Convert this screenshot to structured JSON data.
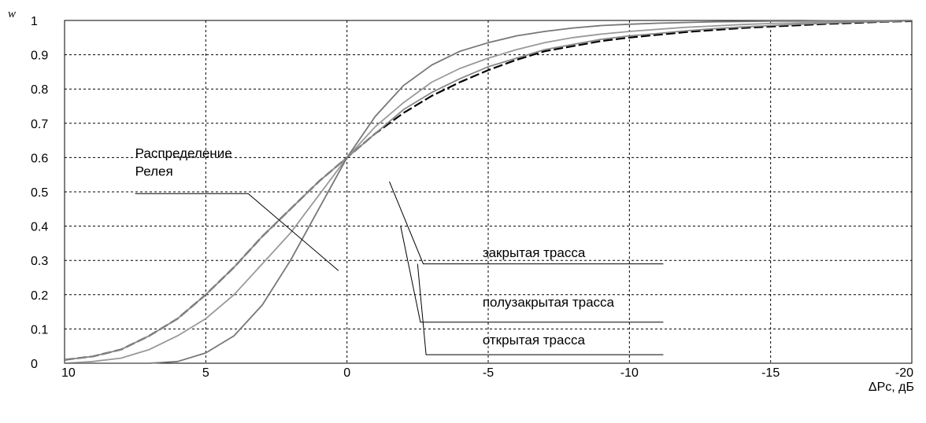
{
  "chart_data": {
    "type": "line",
    "title": "",
    "xlabel": "ΔPc, дБ",
    "ylabel": "w",
    "xlim": [
      10,
      -20
    ],
    "ylim": [
      0,
      1
    ],
    "x_axis_reversed": true,
    "grid": true,
    "x_ticks": [
      10,
      5,
      0,
      -5,
      -10,
      -15,
      -20
    ],
    "x_tick_labels": [
      "10",
      "5",
      "0",
      "-5",
      "-10",
      "-15",
      "-20"
    ],
    "y_ticks": [
      0,
      0.1,
      0.2,
      0.3,
      0.4,
      0.5,
      0.6,
      0.7,
      0.8,
      0.9,
      1
    ],
    "y_tick_labels": [
      "0",
      "0.1",
      "0.2",
      "0.3",
      "0.4",
      "0.5",
      "0.6",
      "0.7",
      "0.8",
      "0.9",
      "1"
    ],
    "series": [
      {
        "name": "Распределение Релея",
        "color": "#000000",
        "dashed": true,
        "x": [
          10,
          9,
          8,
          7,
          6,
          5,
          4,
          3,
          2,
          1,
          0,
          -1,
          -2,
          -3,
          -4,
          -5,
          -6,
          -7,
          -8,
          -9,
          -10,
          -11,
          -12,
          -13,
          -14,
          -15,
          -16,
          -17,
          -18,
          -19,
          -20
        ],
        "y": [
          0.01,
          0.02,
          0.04,
          0.08,
          0.13,
          0.2,
          0.28,
          0.37,
          0.45,
          0.53,
          0.6,
          0.67,
          0.73,
          0.78,
          0.82,
          0.855,
          0.885,
          0.91,
          0.925,
          0.94,
          0.95,
          0.958,
          0.966,
          0.972,
          0.978,
          0.982,
          0.986,
          0.99,
          0.993,
          0.996,
          0.998
        ]
      },
      {
        "name": "закрытая трасса",
        "color": "#888888",
        "dashed": false,
        "x": [
          10,
          9,
          8,
          7,
          6,
          5,
          4,
          3,
          2,
          1,
          0,
          -1,
          -2,
          -3,
          -4,
          -5,
          -6,
          -7,
          -8,
          -9,
          -10,
          -11,
          -12,
          -13,
          -14,
          -15,
          -16,
          -17,
          -18,
          -19,
          -20
        ],
        "y": [
          0.01,
          0.02,
          0.04,
          0.08,
          0.13,
          0.2,
          0.28,
          0.37,
          0.45,
          0.53,
          0.6,
          0.67,
          0.74,
          0.79,
          0.83,
          0.865,
          0.89,
          0.915,
          0.93,
          0.945,
          0.955,
          0.962,
          0.97,
          0.976,
          0.981,
          0.985,
          0.989,
          0.992,
          0.995,
          0.997,
          0.999
        ]
      },
      {
        "name": "полузакрытая трасса",
        "color": "#999999",
        "dashed": false,
        "x": [
          10,
          9,
          8,
          7,
          6,
          5,
          4,
          3,
          2,
          1,
          0,
          -1,
          -2,
          -3,
          -4,
          -5,
          -6,
          -7,
          -8,
          -9,
          -10,
          -11,
          -12,
          -13,
          -14,
          -15,
          -16,
          -17,
          -18,
          -19,
          -20
        ],
        "y": [
          0,
          0.005,
          0.015,
          0.04,
          0.08,
          0.13,
          0.2,
          0.29,
          0.38,
          0.49,
          0.6,
          0.69,
          0.76,
          0.82,
          0.86,
          0.89,
          0.915,
          0.935,
          0.95,
          0.96,
          0.968,
          0.974,
          0.98,
          0.984,
          0.988,
          0.991,
          0.993,
          0.995,
          0.997,
          0.998,
          0.999
        ]
      },
      {
        "name": "открытая трасса",
        "color": "#777777",
        "dashed": false,
        "x": [
          10,
          9,
          8,
          7,
          6,
          5,
          4,
          3,
          2,
          1,
          0,
          -1,
          -2,
          -3,
          -4,
          -5,
          -6,
          -7,
          -8,
          -9,
          -10,
          -11,
          -12,
          -13,
          -14,
          -15,
          -16,
          -17,
          -18,
          -19,
          -20
        ],
        "y": [
          0,
          0,
          0,
          0,
          0.005,
          0.03,
          0.08,
          0.17,
          0.3,
          0.45,
          0.6,
          0.72,
          0.81,
          0.87,
          0.91,
          0.935,
          0.955,
          0.968,
          0.978,
          0.985,
          0.989,
          0.992,
          0.994,
          0.996,
          0.997,
          0.998,
          0.998,
          0.999,
          0.999,
          0.999,
          1
        ]
      }
    ],
    "annotations": [
      {
        "text_lines": [
          "Распределение",
          "Релея"
        ],
        "series": "Распределение Релея",
        "text_x": 7.5,
        "text_y": 0.6,
        "leader": [
          [
            7.5,
            0.495
          ],
          [
            3.5,
            0.495
          ],
          [
            0.3,
            0.27
          ]
        ]
      },
      {
        "text_lines": [
          "закрытая трасса"
        ],
        "series": "закрытая трасса",
        "text_x": -4.8,
        "text_y": 0.31,
        "leader": [
          [
            -2.7,
            0.29
          ],
          [
            -11.2,
            0.29
          ],
          [
            -2.7,
            0.29
          ],
          [
            -1.5,
            0.53
          ]
        ]
      },
      {
        "text_lines": [
          "полузакрытая трасса"
        ],
        "series": "полузакрытая трасса",
        "text_x": -4.8,
        "text_y": 0.165,
        "leader": [
          [
            -2.6,
            0.12
          ],
          [
            -11.2,
            0.12
          ],
          [
            -2.6,
            0.12
          ],
          [
            -1.9,
            0.4
          ]
        ]
      },
      {
        "text_lines": [
          "открытая трасса"
        ],
        "series": "открытая трасса",
        "text_x": -4.8,
        "text_y": 0.055,
        "leader": [
          [
            -2.8,
            0.025
          ],
          [
            -11.2,
            0.025
          ],
          [
            -2.8,
            0.025
          ],
          [
            -2.5,
            0.29
          ]
        ]
      }
    ]
  }
}
